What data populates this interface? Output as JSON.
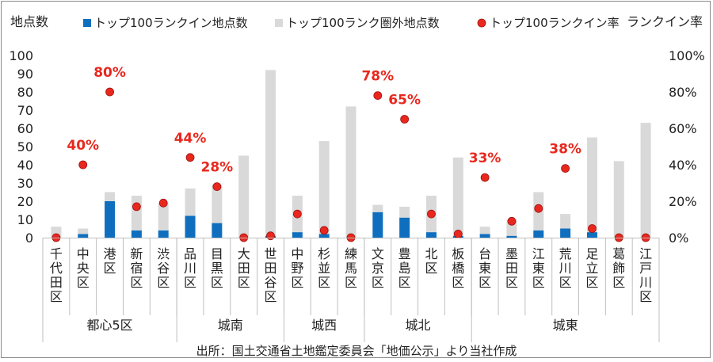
{
  "chart_data": {
    "type": "bar",
    "stacked": true,
    "y_left_label": "地点数",
    "y_right_label": "ランクイン率",
    "ylim_left": [
      0,
      100
    ],
    "ylim_right": [
      0,
      1
    ],
    "y_left_ticks": [
      "0",
      "10",
      "20",
      "30",
      "40",
      "50",
      "60",
      "70",
      "80",
      "90",
      "100"
    ],
    "y_right_ticks": [
      "0%",
      "20%",
      "40%",
      "60%",
      "80%",
      "100%"
    ],
    "legend": {
      "in": "トップ100ランクイン地点数",
      "out": "トップ100ランク圏外地点数",
      "rate": "トップ100ランクイン率"
    },
    "legend_position": "top",
    "grid": false,
    "categories": [
      "千代田区",
      "中央区",
      "港区",
      "新宿区",
      "渋谷区",
      "品川区",
      "目黒区",
      "大田区",
      "世田谷区",
      "中野区",
      "杉並区",
      "練馬区",
      "文京区",
      "豊島区",
      "北区",
      "板橋区",
      "台東区",
      "墨田区",
      "江東区",
      "荒川区",
      "足立区",
      "葛飾区",
      "江戸川区"
    ],
    "series": [
      {
        "name": "トップ100ランクイン地点数",
        "color": "#0f6fbe",
        "values": [
          0,
          2,
          20,
          4,
          4,
          12,
          8,
          0,
          1,
          3,
          2,
          0,
          14,
          11,
          3,
          1,
          2,
          1,
          4,
          5,
          3,
          0,
          0
        ]
      },
      {
        "name": "トップ100ランク圏外地点数",
        "color": "#d9d9d9",
        "values": [
          6,
          3,
          5,
          19,
          15,
          15,
          21,
          45,
          91,
          20,
          51,
          72,
          4,
          6,
          20,
          43,
          4,
          9,
          21,
          8,
          52,
          42,
          63
        ]
      },
      {
        "name": "トップ100ランクイン率",
        "color": "#e8281e",
        "values": [
          0,
          0.4,
          0.8,
          0.17,
          0.19,
          0.44,
          0.28,
          0,
          0.01,
          0.13,
          0.04,
          0,
          0.78,
          0.65,
          0.13,
          0.02,
          0.33,
          0.09,
          0.16,
          0.38,
          0.05,
          0,
          0
        ]
      }
    ],
    "rate_labels": [
      {
        "index": 1,
        "text": "40%"
      },
      {
        "index": 2,
        "text": "80%"
      },
      {
        "index": 5,
        "text": "44%"
      },
      {
        "index": 6,
        "text": "28%"
      },
      {
        "index": 12,
        "text": "78%"
      },
      {
        "index": 13,
        "text": "65%"
      },
      {
        "index": 16,
        "text": "33%"
      },
      {
        "index": 19,
        "text": "38%"
      }
    ],
    "groups": [
      {
        "label": "都心5区",
        "start": 0,
        "end": 4
      },
      {
        "label": "城南",
        "start": 5,
        "end": 8
      },
      {
        "label": "城西",
        "start": 9,
        "end": 11
      },
      {
        "label": "城北",
        "start": 12,
        "end": 15
      },
      {
        "label": "城東",
        "start": 16,
        "end": 22
      }
    ],
    "source": "出所：国土交通省土地鑑定委員会「地価公示」より当社作成"
  }
}
